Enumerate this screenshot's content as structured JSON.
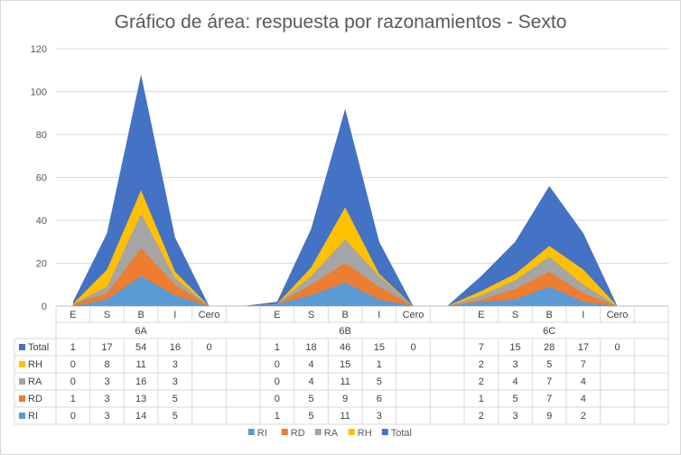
{
  "chart_data": {
    "type": "area",
    "title": "Gráfico de área: respuesta por razonamientos - Sexto",
    "stacked": true,
    "ylim": [
      0,
      120
    ],
    "yticks": [
      "0",
      "20",
      "40",
      "60",
      "80",
      "100",
      "120"
    ],
    "grid": true,
    "legend_position": "bottom",
    "groups": [
      "6A",
      "6B",
      "6C"
    ],
    "categories": [
      "E",
      "S",
      "B",
      "I",
      "Cero"
    ],
    "series": [
      {
        "name": "Total",
        "color": "#4472c4",
        "values": [
          [
            1,
            17,
            54,
            16,
            0
          ],
          [
            1,
            18,
            46,
            15,
            0
          ],
          [
            7,
            15,
            28,
            17,
            0
          ]
        ]
      },
      {
        "name": "RH",
        "color": "#ffc000",
        "values": [
          [
            0,
            8,
            11,
            3,
            null
          ],
          [
            0,
            4,
            15,
            1,
            null
          ],
          [
            2,
            3,
            5,
            7,
            null
          ]
        ]
      },
      {
        "name": "RA",
        "color": "#a5a5a5",
        "values": [
          [
            0,
            3,
            16,
            3,
            null
          ],
          [
            0,
            4,
            11,
            5,
            null
          ],
          [
            2,
            4,
            7,
            4,
            null
          ]
        ]
      },
      {
        "name": "RD",
        "color": "#ed7d31",
        "values": [
          [
            1,
            3,
            13,
            5,
            null
          ],
          [
            0,
            5,
            9,
            6,
            null
          ],
          [
            1,
            5,
            7,
            4,
            null
          ]
        ]
      },
      {
        "name": "RI",
        "color": "#5b9bd5",
        "values": [
          [
            0,
            3,
            14,
            5,
            null
          ],
          [
            1,
            5,
            11,
            3,
            null
          ],
          [
            2,
            3,
            9,
            2,
            null
          ]
        ]
      }
    ],
    "legend_order": [
      "RI",
      "RD",
      "RA",
      "RH",
      "Total"
    ]
  }
}
